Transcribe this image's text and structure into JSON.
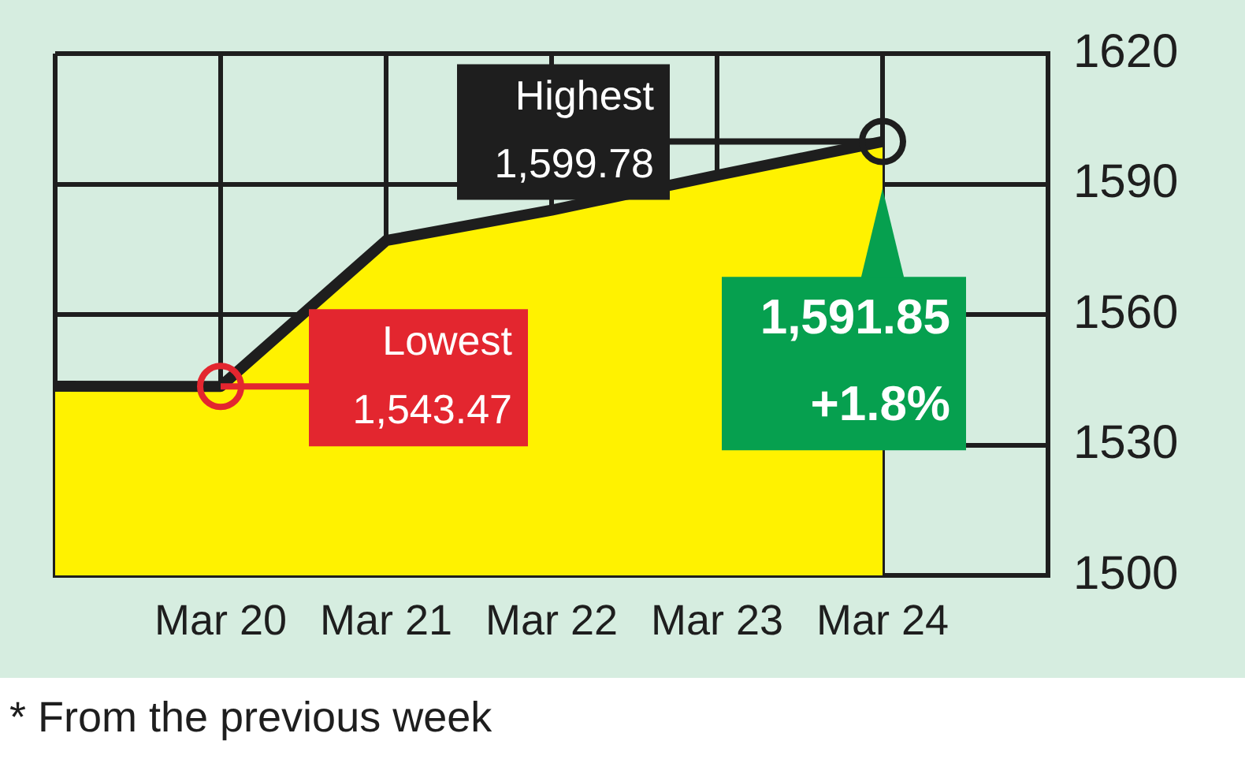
{
  "chart_data": {
    "type": "area",
    "categories": [
      null,
      "Mar 20",
      "Mar 21",
      "Mar 22",
      "Mar 23",
      "Mar 24",
      null
    ],
    "series": [
      {
        "color": "#fff200",
        "values": [
          1543.5,
          1543.47,
          1577,
          1584,
          1592,
          1599.78,
          null
        ]
      }
    ],
    "ylim": [
      1500,
      1620
    ],
    "yticks": [
      1500,
      1530,
      1560,
      1590,
      1620
    ],
    "grid": true,
    "legend": false,
    "annotations": [
      {
        "text": "Highest\n1,599.78",
        "x": "Mar 24",
        "y": 1599.78
      },
      {
        "text": "Lowest\n1,543.47",
        "x": "Mar 20",
        "y": 1543.47
      },
      {
        "text": "1,591.85\n+1.8%",
        "x": "Mar 24",
        "y": 1591.85
      },
      "* From the previous week"
    ]
  }
}
